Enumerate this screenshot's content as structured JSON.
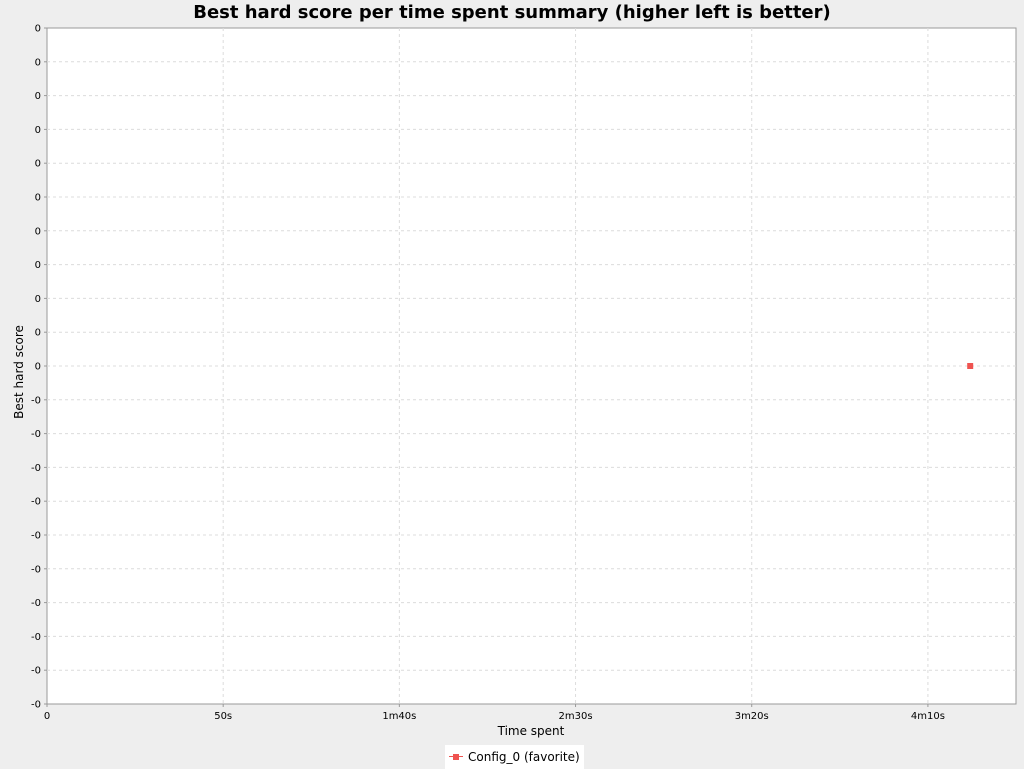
{
  "chart_data": {
    "type": "scatter",
    "title": "Best hard score per time spent summary (higher left is better)",
    "xlabel": "Time spent",
    "ylabel": "Best hard score",
    "x_tick_labels": [
      "0",
      "50s",
      "1m40s",
      "2m30s",
      "3m20s",
      "4m10s"
    ],
    "x_tick_values_seconds": [
      0,
      50,
      100,
      150,
      200,
      250
    ],
    "xlim": [
      0,
      275
    ],
    "y_tick_labels": [
      "0",
      "0",
      "0",
      "0",
      "0",
      "0",
      "0",
      "0",
      "0",
      "0",
      "0",
      "-0",
      "-0",
      "-0",
      "-0",
      "-0",
      "-0",
      "-0",
      "-0",
      "-0",
      "-0"
    ],
    "ylim": [
      -1,
      1
    ],
    "grid": true,
    "legend_position": "bottom",
    "series": [
      {
        "name": "Config_0 (favorite)",
        "color": "#ef5350",
        "marker": "square",
        "points": [
          {
            "x": 262,
            "y": 0
          }
        ]
      }
    ]
  },
  "colors": {
    "background": "#eeeeee",
    "plot_background": "#ffffff",
    "grid": "#dcdcdc",
    "axis": "#999999"
  }
}
